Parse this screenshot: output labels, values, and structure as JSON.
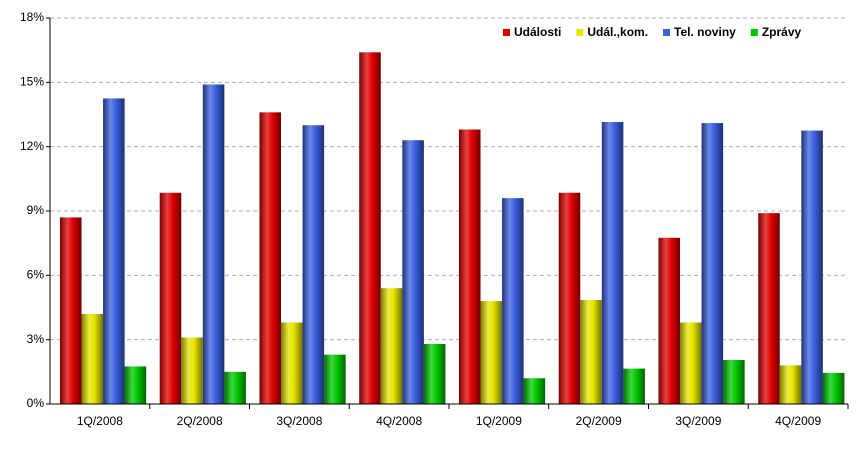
{
  "chart_data": {
    "type": "bar",
    "categories": [
      "1Q/2008",
      "2Q/2008",
      "3Q/2008",
      "4Q/2008",
      "1Q/2009",
      "2Q/2009",
      "3Q/2009",
      "4Q/2009"
    ],
    "series": [
      {
        "name": "Události",
        "color": "#e00000",
        "values": [
          8.7,
          9.85,
          13.6,
          16.4,
          12.8,
          9.85,
          7.75,
          8.9
        ]
      },
      {
        "name": "Udál.,kom.",
        "color": "#e6e600",
        "values": [
          4.2,
          3.1,
          3.8,
          5.4,
          4.8,
          4.85,
          3.8,
          1.8
        ]
      },
      {
        "name": "Tel. noviny",
        "color": "#3a5fe0",
        "values": [
          14.25,
          14.9,
          13.0,
          12.3,
          9.6,
          13.15,
          13.1,
          12.75
        ]
      },
      {
        "name": "Zprávy",
        "color": "#00c800",
        "values": [
          1.75,
          1.5,
          2.3,
          2.8,
          1.2,
          1.65,
          2.05,
          1.45
        ]
      }
    ],
    "ylim": [
      0,
      18
    ],
    "yticks": [
      {
        "value": 0,
        "label": "0%"
      },
      {
        "value": 3,
        "label": "3%"
      },
      {
        "value": 6,
        "label": "6%"
      },
      {
        "value": 9,
        "label": "9%"
      },
      {
        "value": 12,
        "label": "12%"
      },
      {
        "value": 15,
        "label": "15%"
      },
      {
        "value": 18,
        "label": "18%"
      }
    ],
    "grid": true,
    "legend": "upper-right"
  }
}
